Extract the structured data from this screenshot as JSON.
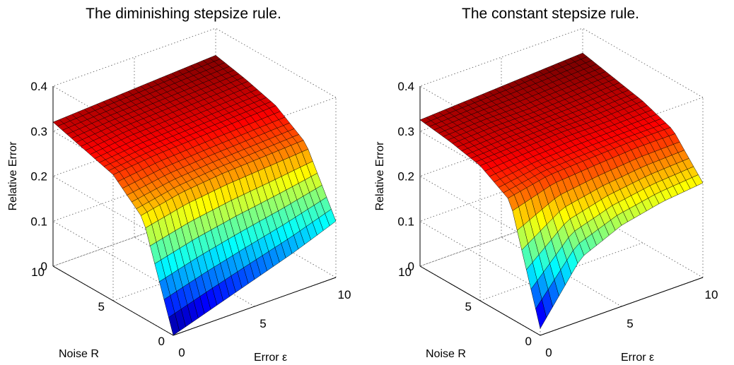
{
  "chart_data": [
    {
      "type": "surface",
      "title": "The diminishing stepsize rule.",
      "xlabel": "Error ε",
      "ylabel": "Noise R",
      "zlabel": "Relative Error",
      "xlim": [
        0,
        10
      ],
      "ylim": [
        0,
        10
      ],
      "zlim": [
        0,
        0.4
      ],
      "x_ticks": [
        "0",
        "5",
        "10"
      ],
      "y_ticks": [
        "0",
        "5",
        "10"
      ],
      "z_ticks": [
        "0",
        "0.1",
        "0.2",
        "0.3",
        "0.4"
      ],
      "colormap": "jet",
      "grid": true,
      "x": [
        0,
        2.5,
        5,
        7.5,
        10
      ],
      "y": [
        0,
        2.5,
        5,
        7.5,
        10
      ],
      "z": [
        [
          0.0,
          0.03,
          0.06,
          0.09,
          0.125
        ],
        [
          0.22,
          0.24,
          0.25,
          0.255,
          0.26
        ],
        [
          0.28,
          0.29,
          0.295,
          0.3,
          0.305
        ],
        [
          0.3,
          0.31,
          0.315,
          0.32,
          0.325
        ],
        [
          0.32,
          0.325,
          0.33,
          0.335,
          0.34
        ]
      ]
    },
    {
      "type": "surface",
      "title": "The constant stepsize rule.",
      "xlabel": "Error ε",
      "ylabel": "Noise R",
      "zlabel": "Relative Error",
      "xlim": [
        0,
        10
      ],
      "ylim": [
        0,
        10
      ],
      "zlim": [
        0,
        0.4
      ],
      "x_ticks": [
        "0",
        "5",
        "10"
      ],
      "y_ticks": [
        "0",
        "5",
        "10"
      ],
      "z_ticks": [
        "0",
        "0.1",
        "0.2",
        "0.3",
        "0.4"
      ],
      "colormap": "jet",
      "grid": true,
      "x": [
        0,
        2.5,
        5,
        7.5,
        10
      ],
      "y": [
        0,
        2.5,
        5,
        7.5,
        10
      ],
      "z": [
        [
          0.015,
          0.14,
          0.18,
          0.2,
          0.21
        ],
        [
          0.26,
          0.28,
          0.285,
          0.29,
          0.29
        ],
        [
          0.3,
          0.305,
          0.31,
          0.31,
          0.315
        ],
        [
          0.315,
          0.32,
          0.32,
          0.325,
          0.33
        ],
        [
          0.325,
          0.33,
          0.335,
          0.34,
          0.345
        ]
      ]
    }
  ]
}
